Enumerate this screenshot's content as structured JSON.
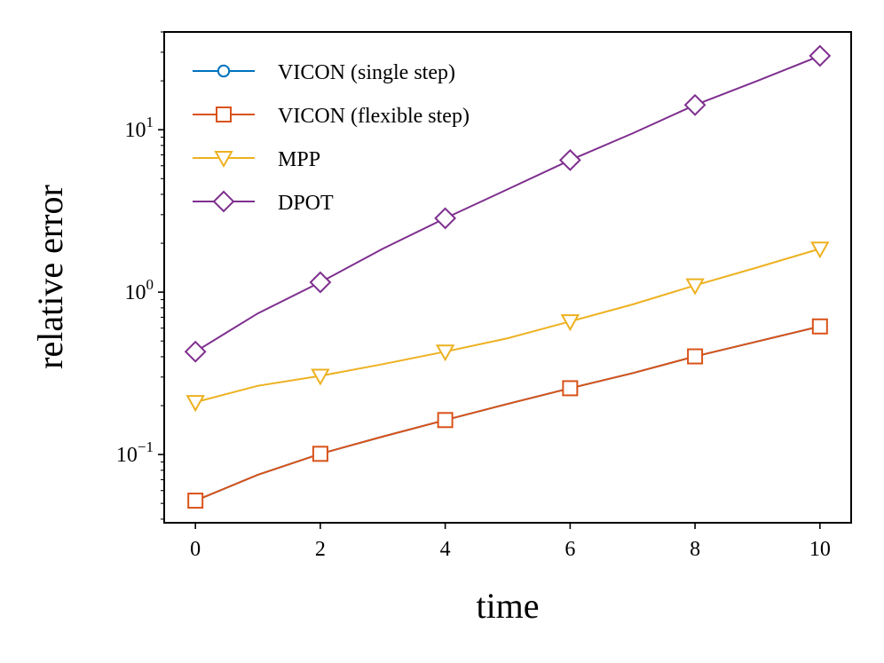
{
  "chart_data": {
    "type": "line",
    "title": "",
    "xlabel": "time",
    "ylabel": "relative error",
    "yscale": "log",
    "xlim": [
      -0.5,
      10.5
    ],
    "ylim": [
      0.038,
      40
    ],
    "x": [
      0,
      1,
      2,
      3,
      4,
      5,
      6,
      7,
      8,
      9,
      10
    ],
    "marker_every": 2,
    "x_ticks": [
      0,
      2,
      4,
      6,
      8,
      10
    ],
    "x_tick_labels": [
      "0",
      "2",
      "4",
      "6",
      "8",
      "10"
    ],
    "y_ticks": [
      {
        "value": 0.1,
        "base": "10",
        "exp": "−1"
      },
      {
        "value": 1,
        "base": "10",
        "exp": "0"
      },
      {
        "value": 10,
        "base": "10",
        "exp": "1"
      }
    ],
    "legend_position": "top-left",
    "series": [
      {
        "name": "VICON (single step)",
        "color": "#0072BD",
        "marker": "circle",
        "values": [
          0.052,
          0.075,
          0.101,
          0.129,
          0.163,
          0.205,
          0.256,
          0.317,
          0.402,
          0.497,
          0.615
        ]
      },
      {
        "name": "VICON (flexible step)",
        "color": "#D95319",
        "marker": "square",
        "values": [
          0.052,
          0.075,
          0.101,
          0.129,
          0.163,
          0.205,
          0.256,
          0.317,
          0.402,
          0.497,
          0.615
        ]
      },
      {
        "name": "MPP",
        "color": "#EDB120",
        "marker": "triangle-down",
        "values": [
          0.21,
          0.265,
          0.305,
          0.36,
          0.43,
          0.52,
          0.66,
          0.84,
          1.1,
          1.42,
          1.85
        ]
      },
      {
        "name": "DPOT",
        "color": "#7E2F8E",
        "marker": "diamond",
        "values": [
          0.43,
          0.74,
          1.15,
          1.85,
          2.85,
          4.3,
          6.5,
          9.5,
          14.2,
          20.0,
          28.5
        ]
      }
    ]
  }
}
